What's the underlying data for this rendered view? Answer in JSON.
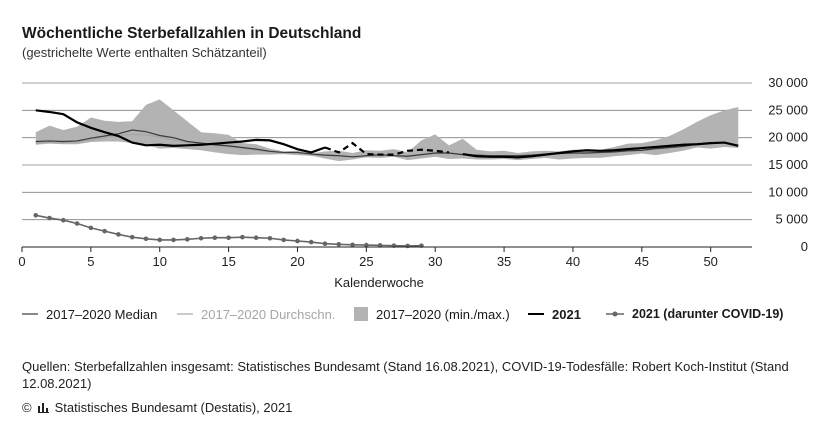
{
  "header": {
    "title": "Wöchentliche Sterbefallzahlen in Deutschland",
    "subtitle": "(gestrichelte Werte enthalten Schätzanteil)"
  },
  "legend": {
    "median": "2017–2020 Median",
    "mean": "2017–2020 Durchschn.",
    "range": "2017–2020 (min./max.)",
    "y2021": "2021",
    "covid": "2021 (darunter COVID-19)"
  },
  "sources": "Quellen: Sterbefallzahlen insgesamt: Statistisches Bundesamt (Stand 16.08.2021), COVID-19-Todesfälle: Robert Koch-Institut (Stand 12.08.2021)",
  "copyright": {
    "symbol": "©",
    "text": "Statistisches Bundesamt (Destatis), 2021"
  },
  "colors": {
    "range": "#b3b3b3",
    "median": "#3a3a3a",
    "mean": "#a6a6a6",
    "y2021": "#000000",
    "covid": "#666666",
    "grid": "#808080"
  },
  "chart_data": {
    "type": "line",
    "title": "Wöchentliche Sterbefallzahlen in Deutschland",
    "subtitle": "(gestrichelte Werte enthalten Schätzanteil)",
    "xlabel": "Kalenderwoche",
    "ylabel": "",
    "xlim": [
      0,
      53
    ],
    "ylim": [
      0,
      30000
    ],
    "x_ticks": [
      0,
      5,
      10,
      15,
      20,
      25,
      30,
      35,
      40,
      45,
      50
    ],
    "y_ticks": [
      0,
      5000,
      10000,
      15000,
      20000,
      25000,
      30000
    ],
    "y_tick_labels": [
      "0",
      "5 000",
      "10 000",
      "15 000",
      "20 000",
      "25 000",
      "30 000"
    ],
    "y_axis_side": "right",
    "grid": "horizontal",
    "legend_position": "bottom",
    "weeks": [
      1,
      2,
      3,
      4,
      5,
      6,
      7,
      8,
      9,
      10,
      11,
      12,
      13,
      14,
      15,
      16,
      17,
      18,
      19,
      20,
      21,
      22,
      23,
      24,
      25,
      26,
      27,
      28,
      29,
      30,
      31,
      32,
      33,
      34,
      35,
      36,
      37,
      38,
      39,
      40,
      41,
      42,
      43,
      44,
      45,
      46,
      47,
      48,
      49,
      50,
      51,
      52
    ],
    "range_2017_2020": {
      "max": [
        21000,
        22200,
        21400,
        22000,
        23700,
        23100,
        22900,
        23000,
        26000,
        27000,
        25000,
        23000,
        21000,
        20800,
        20500,
        19000,
        18800,
        18000,
        17500,
        17600,
        17100,
        17500,
        17600,
        17200,
        17700,
        17600,
        17900,
        17300,
        19500,
        20600,
        18600,
        19800,
        17800,
        17500,
        17600,
        17200,
        17500,
        17600,
        17500,
        17800,
        17800,
        17800,
        18300,
        18900,
        19000,
        19500,
        20300,
        21500,
        22900,
        24100,
        25000,
        25600
      ],
      "min": [
        18700,
        18900,
        18800,
        18800,
        19200,
        19300,
        19300,
        19000,
        18700,
        18000,
        18100,
        17900,
        17700,
        17300,
        17000,
        16800,
        16900,
        16900,
        17000,
        16800,
        16700,
        16200,
        15700,
        16000,
        16400,
        16300,
        16500,
        15900,
        16200,
        16500,
        16100,
        16200,
        16000,
        16000,
        16100,
        15900,
        16100,
        16300,
        16000,
        16200,
        16300,
        16300,
        16600,
        16800,
        17100,
        16800,
        17200,
        17600,
        18200,
        18000,
        18300,
        18100
      ]
    },
    "series": [
      {
        "name": "2017–2020 Median",
        "values": [
          19300,
          19400,
          19300,
          19400,
          19900,
          20300,
          20700,
          21400,
          21100,
          20400,
          20000,
          19300,
          19000,
          18700,
          18500,
          18200,
          17900,
          17500,
          17300,
          17300,
          17000,
          16800,
          16700,
          16500,
          16700,
          16900,
          16700,
          16600,
          16900,
          17200,
          17200,
          16900,
          16800,
          16700,
          16700,
          16700,
          16800,
          17000,
          17100,
          17200,
          17200,
          17300,
          17400,
          17600,
          17700,
          18000,
          18200,
          18400,
          18800,
          19000,
          19100,
          18600
        ]
      },
      {
        "name": "2017–2020 Durchschn.",
        "values": [
          19000,
          19200,
          19100,
          19300,
          19600,
          20000,
          20400,
          20600,
          20500,
          20100,
          19600,
          19100,
          18800,
          18500,
          18300,
          18000,
          17700,
          17400,
          17200,
          17100,
          16900,
          16700,
          16600,
          16500,
          16600,
          16700,
          16700,
          16700,
          16900,
          17100,
          17100,
          16900,
          16800,
          16700,
          16700,
          16700,
          16800,
          16900,
          17000,
          17100,
          17100,
          17200,
          17300,
          17500,
          17600,
          17900,
          18100,
          18400,
          18700,
          18900,
          19100,
          18700
        ]
      },
      {
        "name": "2021",
        "values": [
          25000,
          24700,
          24300,
          22800,
          21800,
          21000,
          20300,
          19100,
          18600,
          18700,
          18500,
          18600,
          18700,
          18900,
          19100,
          19300,
          19600,
          19500,
          18800,
          17900,
          17300,
          18200,
          null,
          null,
          null,
          null,
          null,
          null,
          null,
          null,
          null,
          17000,
          16600,
          16500,
          16500,
          16400,
          16600,
          16900,
          17200,
          17500,
          17700,
          17600,
          17700,
          17900,
          18100,
          18300,
          18500,
          18700,
          18800,
          19000,
          19100,
          18500
        ],
        "estimated": {
          "weeks": [
            22,
            23,
            24,
            25,
            26,
            27,
            28,
            29,
            30,
            31
          ],
          "values": [
            18200,
            17300,
            19000,
            17000,
            16900,
            16900,
            17600,
            17800,
            17600,
            17300
          ]
        }
      },
      {
        "name": "2021 (darunter COVID-19)",
        "weeks": [
          1,
          2,
          3,
          4,
          5,
          6,
          7,
          8,
          9,
          10,
          11,
          12,
          13,
          14,
          15,
          16,
          17,
          18,
          19,
          20,
          21,
          22,
          23,
          24,
          25,
          26,
          27,
          28,
          29
        ],
        "values": [
          5800,
          5300,
          4900,
          4300,
          3500,
          2900,
          2300,
          1800,
          1500,
          1300,
          1300,
          1400,
          1600,
          1700,
          1700,
          1800,
          1700,
          1600,
          1300,
          1100,
          900,
          600,
          500,
          400,
          350,
          300,
          250,
          200,
          250
        ]
      }
    ]
  }
}
